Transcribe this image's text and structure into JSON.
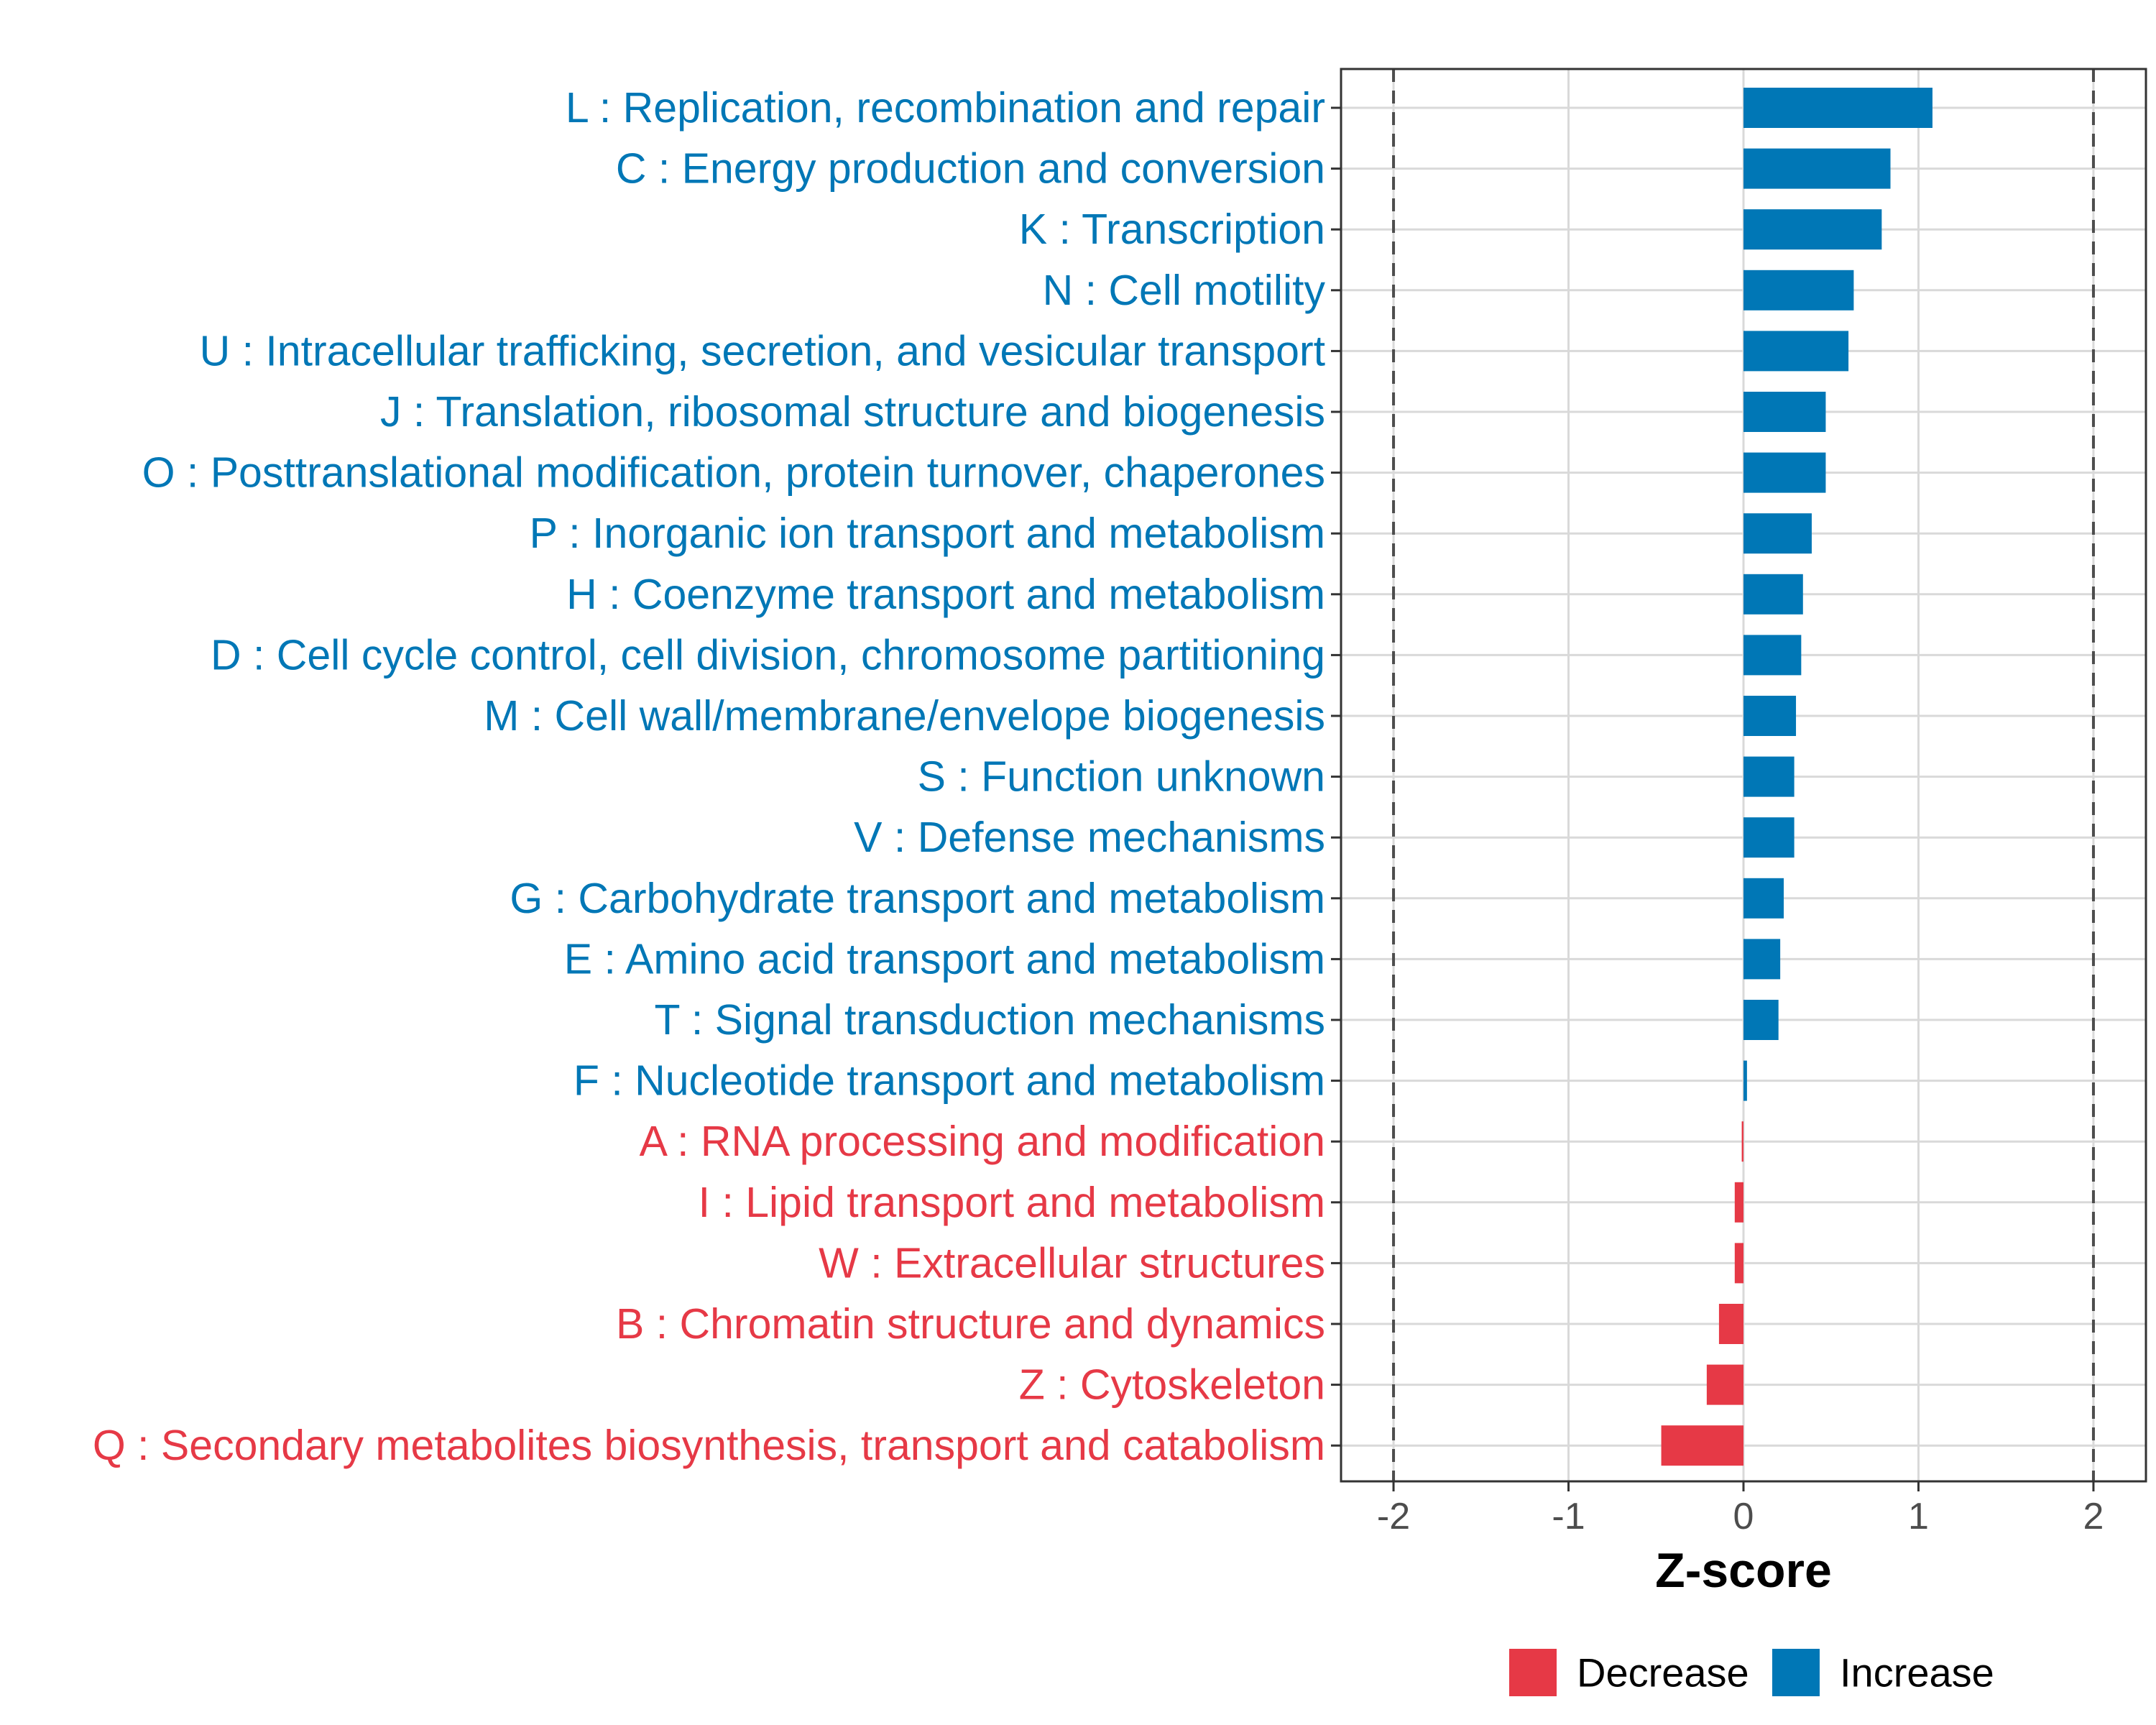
{
  "chart_data": {
    "type": "bar",
    "orientation": "horizontal",
    "categories": [
      "L : Replication, recombination and repair",
      "C : Energy production and conversion",
      "K : Transcription",
      "N : Cell motility",
      "U : Intracellular trafficking, secretion, and vesicular transport",
      "J : Translation, ribosomal structure and biogenesis",
      "O : Posttranslational modification, protein turnover, chaperones",
      "P : Inorganic ion transport and metabolism",
      "H : Coenzyme transport and metabolism",
      "D : Cell cycle control, cell division, chromosome partitioning",
      "M : Cell wall/membrane/envelope biogenesis",
      "S : Function unknown",
      "V : Defense mechanisms",
      "G : Carbohydrate transport and metabolism",
      "E : Amino acid transport and metabolism",
      "T : Signal transduction mechanisms",
      "F : Nucleotide transport and metabolism",
      "A : RNA processing and modification",
      "I : Lipid transport and metabolism",
      "W : Extracellular structures",
      "B : Chromatin structure and dynamics",
      "Z : Cytoskeleton",
      "Q : Secondary metabolites biosynthesis, transport and catabolism"
    ],
    "values": [
      1.08,
      0.84,
      0.79,
      0.63,
      0.6,
      0.47,
      0.47,
      0.39,
      0.34,
      0.33,
      0.3,
      0.29,
      0.29,
      0.23,
      0.21,
      0.2,
      0.02,
      -0.01,
      -0.05,
      -0.05,
      -0.14,
      -0.21,
      -0.47
    ],
    "groups": [
      "Increase",
      "Increase",
      "Increase",
      "Increase",
      "Increase",
      "Increase",
      "Increase",
      "Increase",
      "Increase",
      "Increase",
      "Increase",
      "Increase",
      "Increase",
      "Increase",
      "Increase",
      "Increase",
      "Increase",
      "Decrease",
      "Decrease",
      "Decrease",
      "Decrease",
      "Decrease",
      "Decrease"
    ],
    "xlabel": "Z-score",
    "xlim": [
      -2.3,
      2.3
    ],
    "xticks": [
      -2,
      -1,
      0,
      1,
      2
    ],
    "xtick_labels": [
      "-2",
      "-1",
      "0",
      "1",
      "2"
    ],
    "reference_lines": [
      -2,
      2
    ],
    "grid": true,
    "legend": {
      "placement": "bottom",
      "entries": [
        {
          "label": "Decrease",
          "color": "#e63946"
        },
        {
          "label": "Increase",
          "color": "#0077b6"
        }
      ]
    }
  },
  "colors": {
    "increase": "#0077b6",
    "decrease": "#e63946",
    "grid": "#d9d9d9",
    "reference_line": "#4d4d4d",
    "panel_border": "#333333"
  }
}
